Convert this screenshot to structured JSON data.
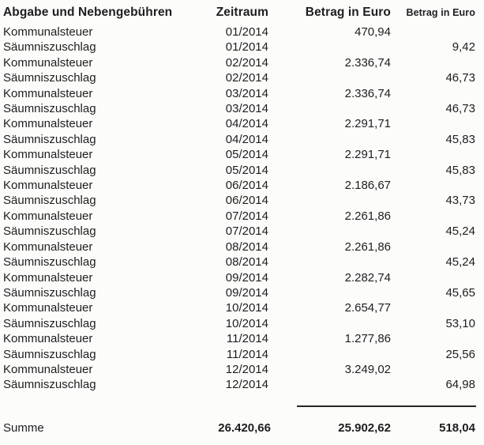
{
  "colors": {
    "text": "#1e1e1e",
    "background": "#fcfcfb",
    "rule": "#262626"
  },
  "table": {
    "columns": [
      {
        "label": "Abgabe und Nebengebühren"
      },
      {
        "label": "Zeitraum"
      },
      {
        "label": "Betrag in Euro"
      },
      {
        "label": "Betrag in Euro"
      }
    ],
    "rows": [
      {
        "abgabe": "Kommunalsteuer",
        "zeitraum": "01/2014",
        "betrag1": "470,94",
        "betrag2": ""
      },
      {
        "abgabe": "Säumniszuschlag",
        "zeitraum": "01/2014",
        "betrag1": "",
        "betrag2": "9,42"
      },
      {
        "abgabe": "Kommunalsteuer",
        "zeitraum": "02/2014",
        "betrag1": "2.336,74",
        "betrag2": ""
      },
      {
        "abgabe": "Säumniszuschlag",
        "zeitraum": "02/2014",
        "betrag1": "",
        "betrag2": "46,73"
      },
      {
        "abgabe": "Kommunalsteuer",
        "zeitraum": "03/2014",
        "betrag1": "2.336,74",
        "betrag2": ""
      },
      {
        "abgabe": "Säumniszuschlag",
        "zeitraum": "03/2014",
        "betrag1": "",
        "betrag2": "46,73"
      },
      {
        "abgabe": "Kommunalsteuer",
        "zeitraum": "04/2014",
        "betrag1": "2.291,71",
        "betrag2": ""
      },
      {
        "abgabe": "Säumniszuschlag",
        "zeitraum": "04/2014",
        "betrag1": "",
        "betrag2": "45,83"
      },
      {
        "abgabe": "Kommunalsteuer",
        "zeitraum": "05/2014",
        "betrag1": "2.291,71",
        "betrag2": ""
      },
      {
        "abgabe": "Säumniszuschlag",
        "zeitraum": "05/2014",
        "betrag1": "",
        "betrag2": "45,83"
      },
      {
        "abgabe": "Kommunalsteuer",
        "zeitraum": "06/2014",
        "betrag1": "2.186,67",
        "betrag2": ""
      },
      {
        "abgabe": "Säumniszuschlag",
        "zeitraum": "06/2014",
        "betrag1": "",
        "betrag2": "43,73"
      },
      {
        "abgabe": "Kommunalsteuer",
        "zeitraum": "07/2014",
        "betrag1": "2.261,86",
        "betrag2": ""
      },
      {
        "abgabe": "Säumniszuschlag",
        "zeitraum": "07/2014",
        "betrag1": "",
        "betrag2": "45,24"
      },
      {
        "abgabe": "Kommunalsteuer",
        "zeitraum": "08/2014",
        "betrag1": "2.261,86",
        "betrag2": ""
      },
      {
        "abgabe": "Säumniszuschlag",
        "zeitraum": "08/2014",
        "betrag1": "",
        "betrag2": "45,24"
      },
      {
        "abgabe": "Kommunalsteuer",
        "zeitraum": "09/2014",
        "betrag1": "2.282,74",
        "betrag2": ""
      },
      {
        "abgabe": "Säumniszuschlag",
        "zeitraum": "09/2014",
        "betrag1": "",
        "betrag2": "45,65"
      },
      {
        "abgabe": "Kommunalsteuer",
        "zeitraum": "10/2014",
        "betrag1": "2.654,77",
        "betrag2": ""
      },
      {
        "abgabe": "Säumniszuschlag",
        "zeitraum": "10/2014",
        "betrag1": "",
        "betrag2": "53,10"
      },
      {
        "abgabe": "Kommunalsteuer",
        "zeitraum": "11/2014",
        "betrag1": "1.277,86",
        "betrag2": ""
      },
      {
        "abgabe": "Säumniszuschlag",
        "zeitraum": "11/2014",
        "betrag1": "",
        "betrag2": "25,56"
      },
      {
        "abgabe": "Kommunalsteuer",
        "zeitraum": "12/2014",
        "betrag1": "3.249,02",
        "betrag2": ""
      },
      {
        "abgabe": "Säumniszuschlag",
        "zeitraum": "12/2014",
        "betrag1": "",
        "betrag2": "64,98"
      }
    ],
    "summary": {
      "label": "Summe",
      "gesamt": "26.420,66",
      "betrag1": "25.902,62",
      "betrag2": "518,04"
    }
  }
}
